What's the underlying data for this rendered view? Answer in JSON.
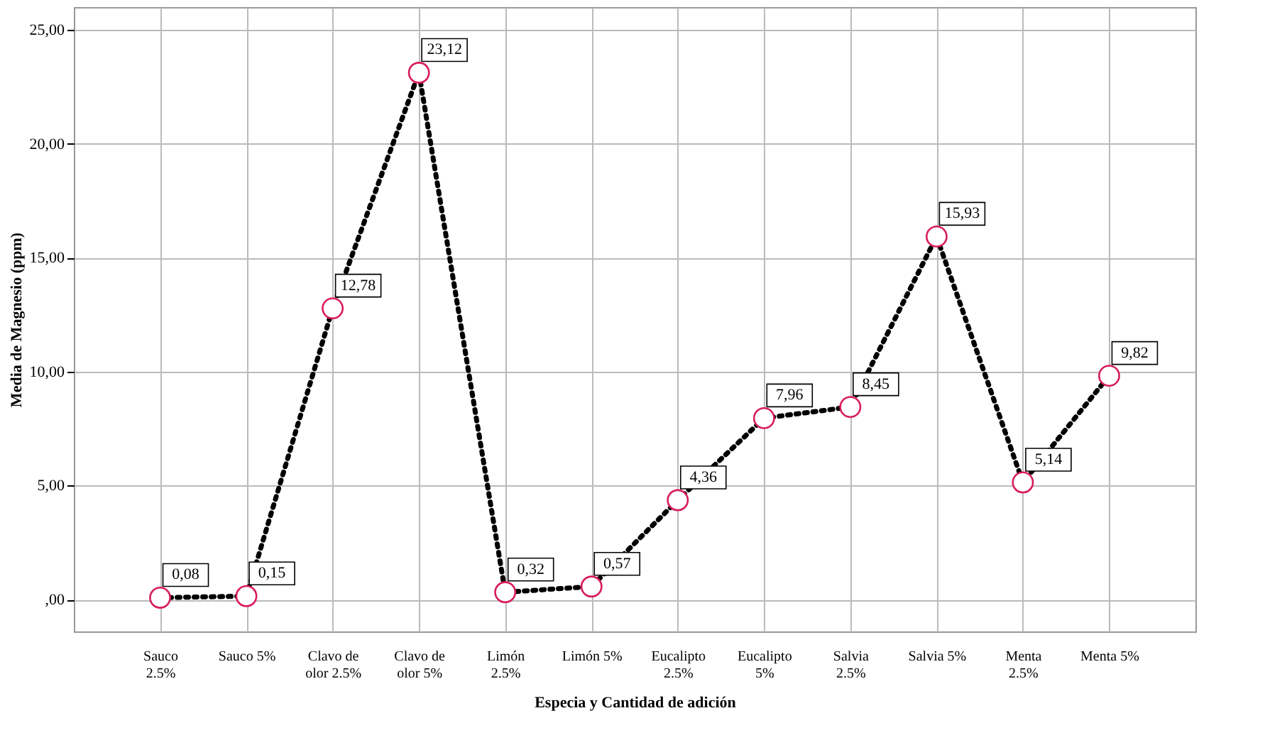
{
  "chart_data": {
    "type": "line",
    "xlabel": "Especia y Cantidad de adición",
    "ylabel": "Media de Magnesio (ppm)",
    "categories": [
      "Sauco\n2.5%",
      "Sauco 5%",
      "Clavo de\nolor 2.5%",
      "Clavo de\nolor 5%",
      "Limón\n2.5%",
      "Limón 5%",
      "Eucalipto\n2.5%",
      "Eucalipto\n5%",
      "Salvia\n2.5%",
      "Salvia 5%",
      "Menta\n2.5%",
      "Menta 5%"
    ],
    "series": [
      {
        "color": "#000000",
        "values": [
          0.08,
          0.15,
          12.78,
          23.12,
          0.32,
          0.57,
          4.36,
          7.96,
          8.45,
          15.93,
          5.14,
          9.82
        ],
        "value_labels": [
          "0,08",
          "0,15",
          "12,78",
          "23,12",
          "0,32",
          "0,57",
          "4,36",
          "7,96",
          "8,45",
          "15,93",
          "5,14",
          "9,82"
        ]
      }
    ],
    "marker": "circle",
    "line_style": "dotted",
    "ylim": [
      -1.4,
      26
    ],
    "yticks": [
      {
        "value": 0,
        "label": ",00"
      },
      {
        "value": 5,
        "label": "5,00"
      },
      {
        "value": 10,
        "label": "10,00"
      },
      {
        "value": 15,
        "label": "15,00"
      },
      {
        "value": 20,
        "label": "20,00"
      },
      {
        "value": 25,
        "label": "25,00"
      }
    ],
    "grid": true
  }
}
